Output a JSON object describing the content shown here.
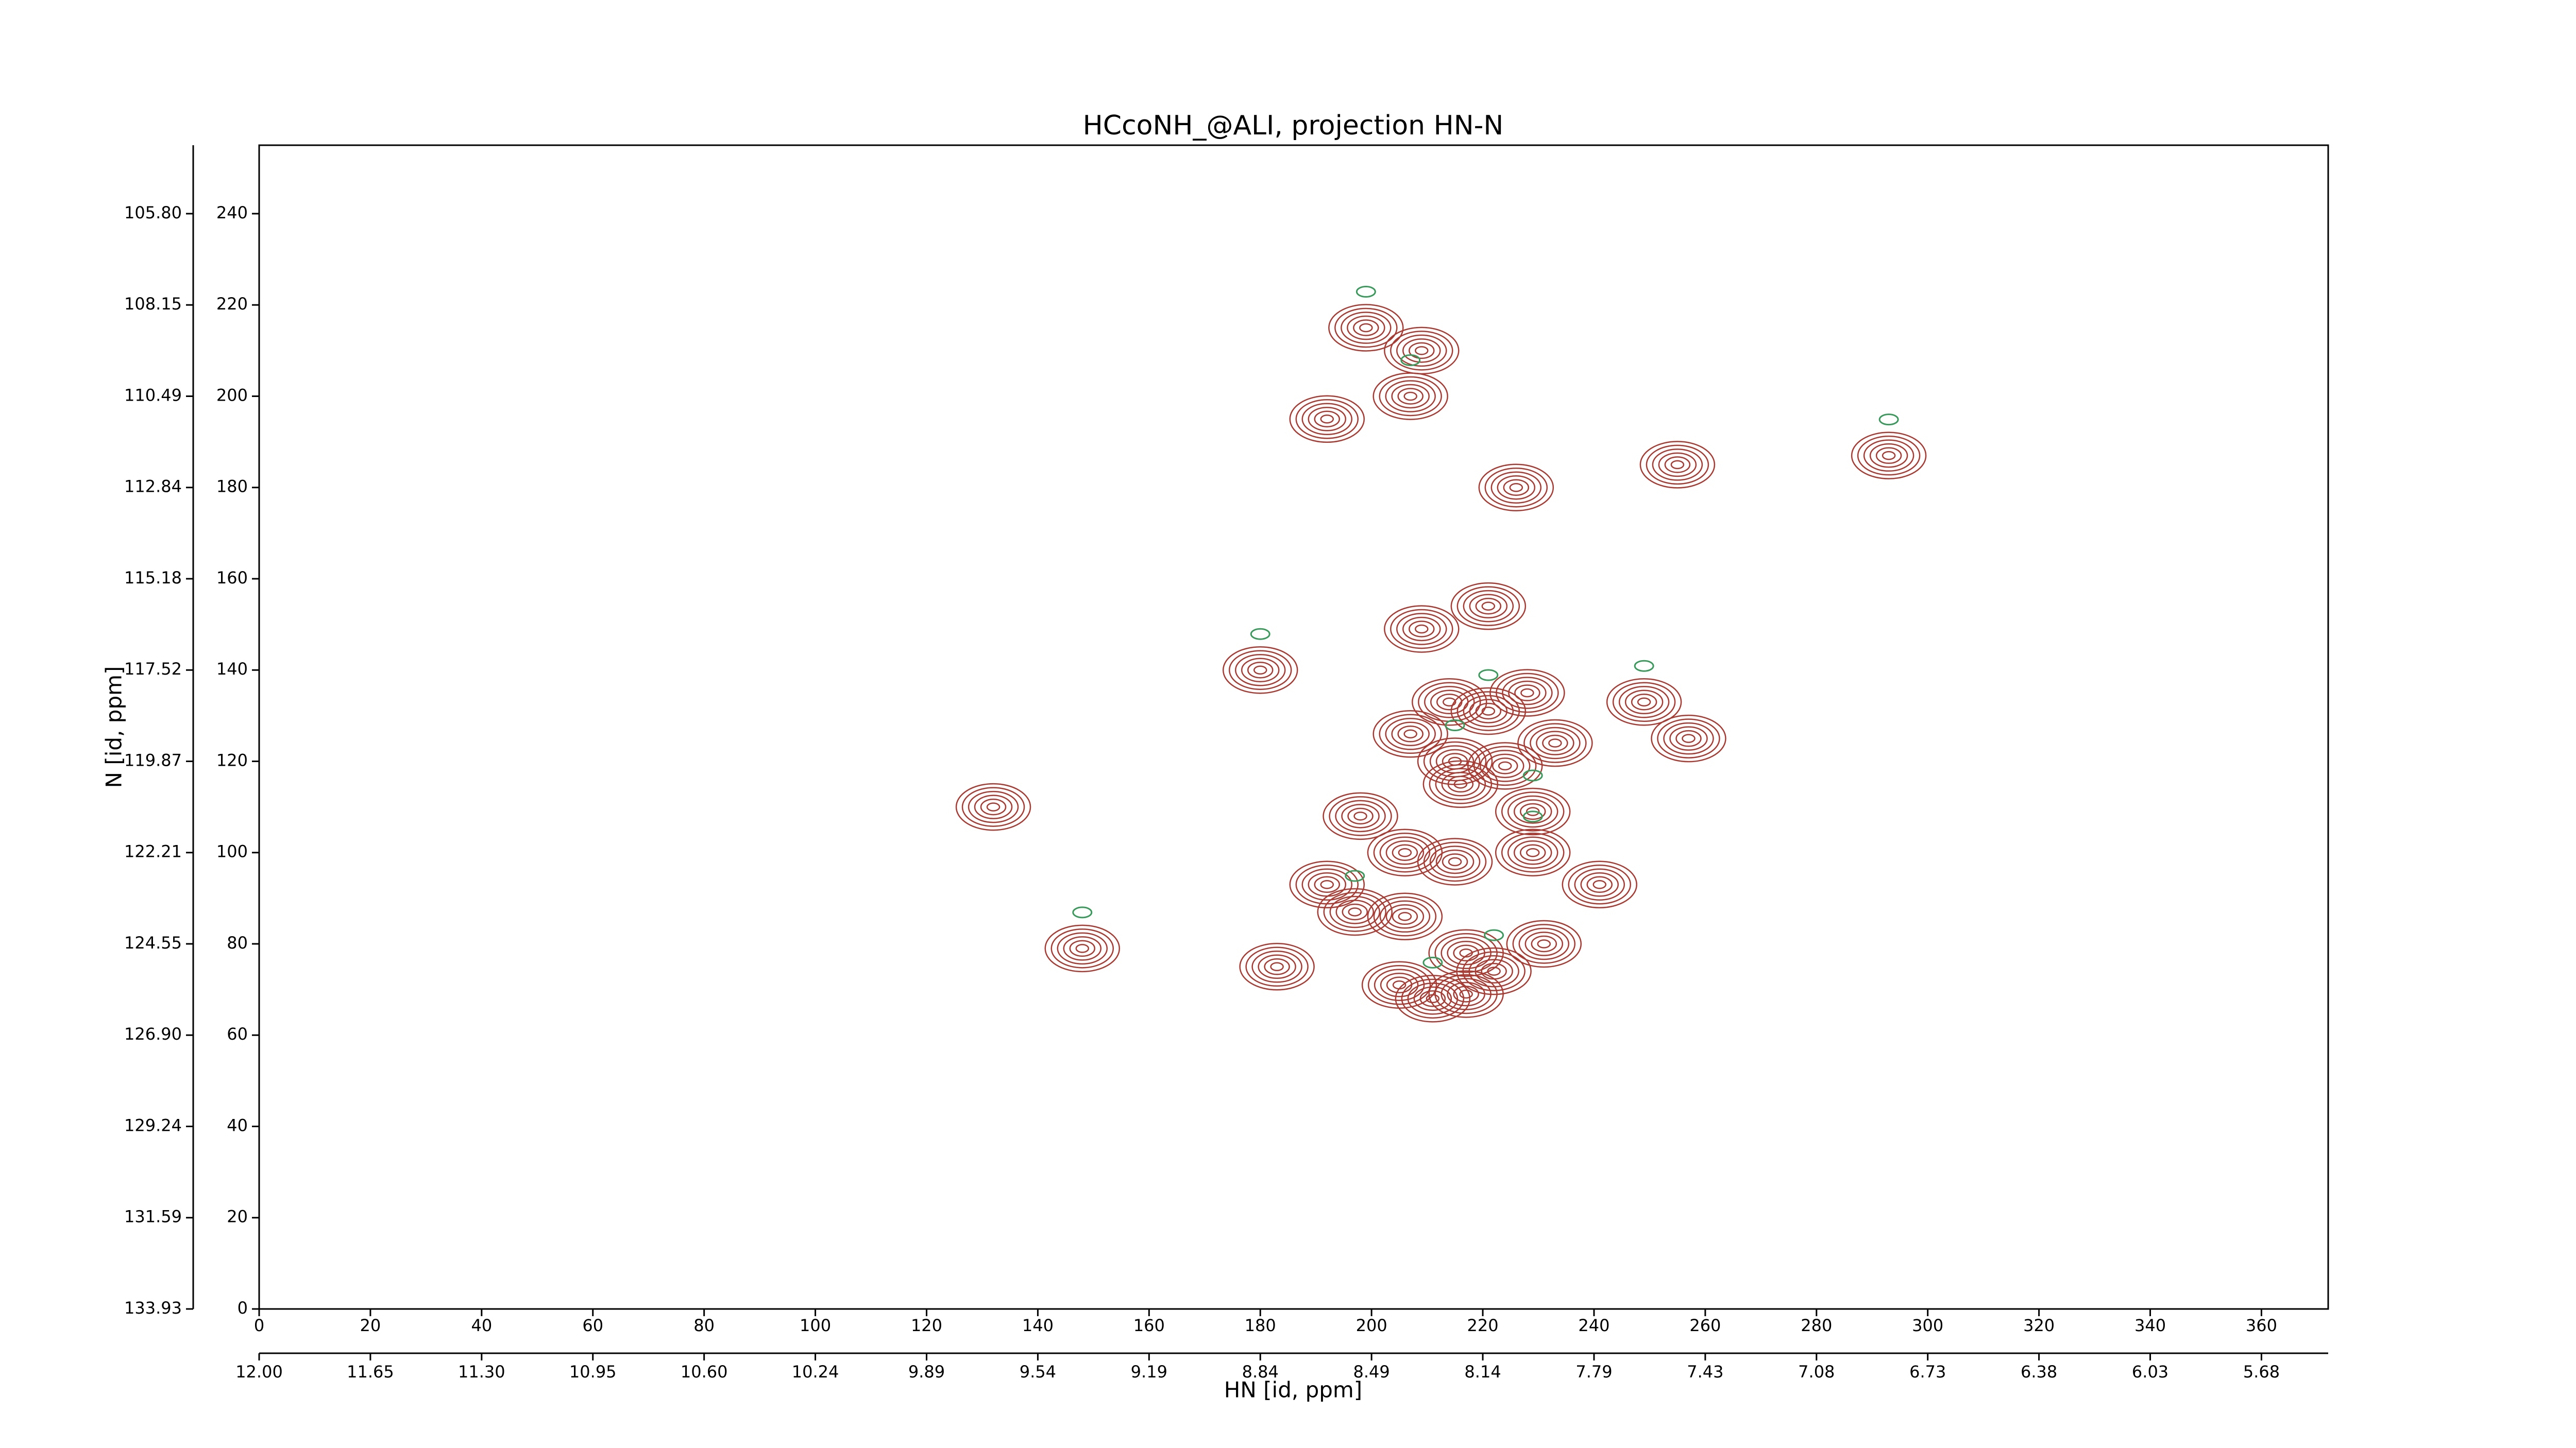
{
  "chart_data": {
    "type": "contour",
    "title": "HCcoNH_@ALI, projection HN-N",
    "x_label": "HN [id, ppm]",
    "y_label": "N [id, ppm]",
    "xlim": [
      0,
      372
    ],
    "ylim": [
      0,
      255
    ],
    "xticks": [
      0,
      20,
      40,
      60,
      80,
      100,
      120,
      140,
      160,
      180,
      200,
      220,
      240,
      260,
      280,
      300,
      320,
      340,
      360
    ],
    "yticks": [
      0,
      20,
      40,
      60,
      80,
      100,
      120,
      140,
      160,
      180,
      200,
      220,
      240
    ],
    "x2ticks": [
      {
        "value": 0,
        "label": "12.00"
      },
      {
        "value": 20,
        "label": "11.65"
      },
      {
        "value": 40,
        "label": "11.30"
      },
      {
        "value": 60,
        "label": "10.95"
      },
      {
        "value": 80,
        "label": "10.60"
      },
      {
        "value": 100,
        "label": "10.24"
      },
      {
        "value": 120,
        "label": "9.89"
      },
      {
        "value": 140,
        "label": "9.54"
      },
      {
        "value": 160,
        "label": "9.19"
      },
      {
        "value": 180,
        "label": "8.84"
      },
      {
        "value": 200,
        "label": "8.49"
      },
      {
        "value": 220,
        "label": "8.14"
      },
      {
        "value": 240,
        "label": "7.79"
      },
      {
        "value": 260,
        "label": "7.43"
      },
      {
        "value": 280,
        "label": "7.08"
      },
      {
        "value": 300,
        "label": "6.73"
      },
      {
        "value": 320,
        "label": "6.38"
      },
      {
        "value": 340,
        "label": "6.03"
      },
      {
        "value": 360,
        "label": "5.68"
      }
    ],
    "y2ticks": [
      {
        "value": 0,
        "label": "133.93"
      },
      {
        "value": 20,
        "label": "131.59"
      },
      {
        "value": 40,
        "label": "129.24"
      },
      {
        "value": 60,
        "label": "126.90"
      },
      {
        "value": 80,
        "label": "124.55"
      },
      {
        "value": 100,
        "label": "122.21"
      },
      {
        "value": 120,
        "label": "119.87"
      },
      {
        "value": 140,
        "label": "117.52"
      },
      {
        "value": 160,
        "label": "115.18"
      },
      {
        "value": 180,
        "label": "112.84"
      },
      {
        "value": 200,
        "label": "110.49"
      },
      {
        "value": 220,
        "label": "108.15"
      },
      {
        "value": 240,
        "label": "105.80"
      }
    ],
    "color": "#a83a32",
    "negative_color": "#3a9a5c",
    "peaks": {
      "x": [
        199,
        192,
        209,
        207,
        226,
        255,
        293,
        209,
        221,
        180,
        214,
        228,
        221,
        207,
        233,
        215,
        224,
        257,
        249,
        216,
        198,
        229,
        206,
        215,
        229,
        192,
        241,
        197,
        206,
        132,
        148,
        231,
        217,
        222,
        183,
        205,
        211,
        217
      ],
      "y": [
        215,
        195,
        210,
        200,
        180,
        185,
        187,
        149,
        154,
        140,
        133,
        135,
        131,
        126,
        124,
        120,
        119,
        125,
        133,
        115,
        108,
        109,
        100,
        98,
        100,
        93,
        93,
        87,
        86,
        110,
        79,
        80,
        78,
        74,
        75,
        71,
        68,
        69
      ]
    }
  }
}
